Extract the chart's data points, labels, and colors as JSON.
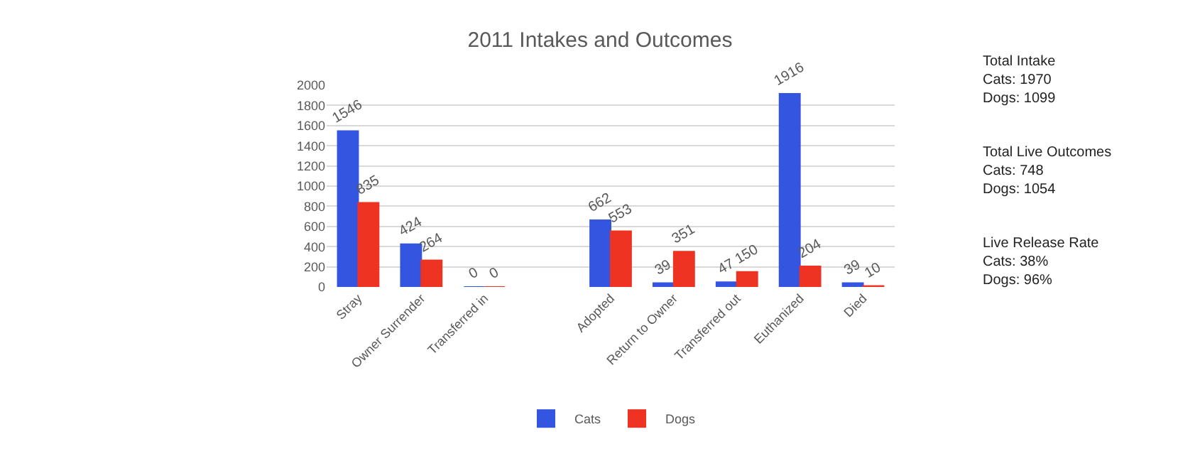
{
  "chart_data": {
    "type": "bar",
    "title": "2011 Intakes and Outcomes",
    "categories": [
      "Stray",
      "Owner Surrender",
      "Transferred in",
      null,
      "Adopted",
      "Return to Owner",
      "Transferred out",
      "Euthanized",
      "Died"
    ],
    "series": [
      {
        "name": "Cats",
        "color": "#3355e0",
        "values": [
          1546,
          424,
          0,
          null,
          662,
          39,
          47,
          1916,
          39
        ]
      },
      {
        "name": "Dogs",
        "color": "#ee3322",
        "values": [
          835,
          264,
          0,
          null,
          553,
          351,
          150,
          204,
          10
        ]
      }
    ],
    "ylim": [
      0,
      2000
    ],
    "yticks": [
      0,
      200,
      400,
      600,
      800,
      1000,
      1200,
      1400,
      1600,
      1800,
      2000
    ],
    "grid": "y",
    "legend": "bottom",
    "data_labels": true,
    "annotations": [
      "Total Intake\nCats: 1970\nDogs: 1099",
      "Total Live Outcomes\nCats: 748\nDogs: 1054",
      "Live Release Rate\nCats: 38%\nDogs: 96%"
    ]
  }
}
